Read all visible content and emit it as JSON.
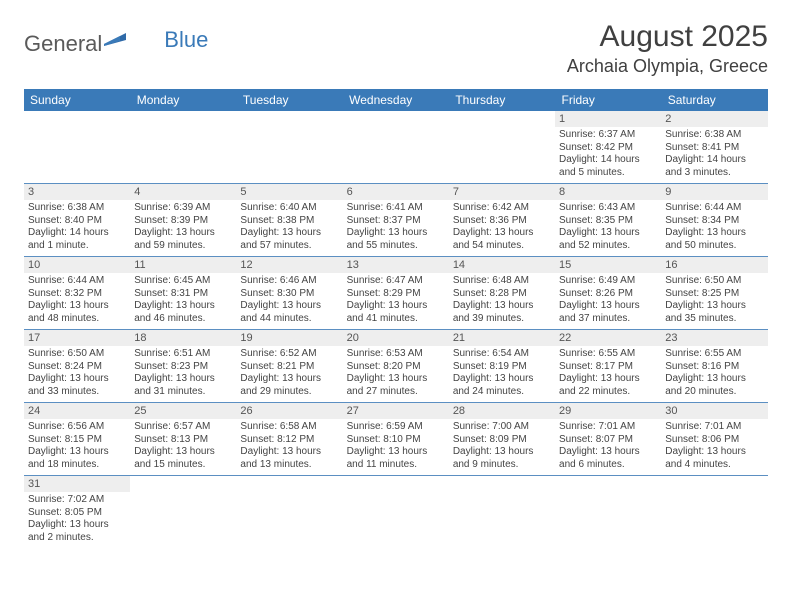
{
  "logo": {
    "part1": "General",
    "part2": "Blue"
  },
  "title": "August 2025",
  "location": "Archaia Olympia, Greece",
  "colors": {
    "header_bg": "#3a7ab8",
    "header_text": "#ffffff",
    "daynum_bg": "#eeeeee",
    "row_divider": "#5b8fc2",
    "text": "#444444",
    "title_text": "#404040"
  },
  "days_of_week": [
    "Sunday",
    "Monday",
    "Tuesday",
    "Wednesday",
    "Thursday",
    "Friday",
    "Saturday"
  ],
  "weeks": [
    [
      {
        "empty": true
      },
      {
        "empty": true
      },
      {
        "empty": true
      },
      {
        "empty": true
      },
      {
        "empty": true
      },
      {
        "num": "1",
        "sunrise": "Sunrise: 6:37 AM",
        "sunset": "Sunset: 8:42 PM",
        "daylight": "Daylight: 14 hours and 5 minutes."
      },
      {
        "num": "2",
        "sunrise": "Sunrise: 6:38 AM",
        "sunset": "Sunset: 8:41 PM",
        "daylight": "Daylight: 14 hours and 3 minutes."
      }
    ],
    [
      {
        "num": "3",
        "sunrise": "Sunrise: 6:38 AM",
        "sunset": "Sunset: 8:40 PM",
        "daylight": "Daylight: 14 hours and 1 minute."
      },
      {
        "num": "4",
        "sunrise": "Sunrise: 6:39 AM",
        "sunset": "Sunset: 8:39 PM",
        "daylight": "Daylight: 13 hours and 59 minutes."
      },
      {
        "num": "5",
        "sunrise": "Sunrise: 6:40 AM",
        "sunset": "Sunset: 8:38 PM",
        "daylight": "Daylight: 13 hours and 57 minutes."
      },
      {
        "num": "6",
        "sunrise": "Sunrise: 6:41 AM",
        "sunset": "Sunset: 8:37 PM",
        "daylight": "Daylight: 13 hours and 55 minutes."
      },
      {
        "num": "7",
        "sunrise": "Sunrise: 6:42 AM",
        "sunset": "Sunset: 8:36 PM",
        "daylight": "Daylight: 13 hours and 54 minutes."
      },
      {
        "num": "8",
        "sunrise": "Sunrise: 6:43 AM",
        "sunset": "Sunset: 8:35 PM",
        "daylight": "Daylight: 13 hours and 52 minutes."
      },
      {
        "num": "9",
        "sunrise": "Sunrise: 6:44 AM",
        "sunset": "Sunset: 8:34 PM",
        "daylight": "Daylight: 13 hours and 50 minutes."
      }
    ],
    [
      {
        "num": "10",
        "sunrise": "Sunrise: 6:44 AM",
        "sunset": "Sunset: 8:32 PM",
        "daylight": "Daylight: 13 hours and 48 minutes."
      },
      {
        "num": "11",
        "sunrise": "Sunrise: 6:45 AM",
        "sunset": "Sunset: 8:31 PM",
        "daylight": "Daylight: 13 hours and 46 minutes."
      },
      {
        "num": "12",
        "sunrise": "Sunrise: 6:46 AM",
        "sunset": "Sunset: 8:30 PM",
        "daylight": "Daylight: 13 hours and 44 minutes."
      },
      {
        "num": "13",
        "sunrise": "Sunrise: 6:47 AM",
        "sunset": "Sunset: 8:29 PM",
        "daylight": "Daylight: 13 hours and 41 minutes."
      },
      {
        "num": "14",
        "sunrise": "Sunrise: 6:48 AM",
        "sunset": "Sunset: 8:28 PM",
        "daylight": "Daylight: 13 hours and 39 minutes."
      },
      {
        "num": "15",
        "sunrise": "Sunrise: 6:49 AM",
        "sunset": "Sunset: 8:26 PM",
        "daylight": "Daylight: 13 hours and 37 minutes."
      },
      {
        "num": "16",
        "sunrise": "Sunrise: 6:50 AM",
        "sunset": "Sunset: 8:25 PM",
        "daylight": "Daylight: 13 hours and 35 minutes."
      }
    ],
    [
      {
        "num": "17",
        "sunrise": "Sunrise: 6:50 AM",
        "sunset": "Sunset: 8:24 PM",
        "daylight": "Daylight: 13 hours and 33 minutes."
      },
      {
        "num": "18",
        "sunrise": "Sunrise: 6:51 AM",
        "sunset": "Sunset: 8:23 PM",
        "daylight": "Daylight: 13 hours and 31 minutes."
      },
      {
        "num": "19",
        "sunrise": "Sunrise: 6:52 AM",
        "sunset": "Sunset: 8:21 PM",
        "daylight": "Daylight: 13 hours and 29 minutes."
      },
      {
        "num": "20",
        "sunrise": "Sunrise: 6:53 AM",
        "sunset": "Sunset: 8:20 PM",
        "daylight": "Daylight: 13 hours and 27 minutes."
      },
      {
        "num": "21",
        "sunrise": "Sunrise: 6:54 AM",
        "sunset": "Sunset: 8:19 PM",
        "daylight": "Daylight: 13 hours and 24 minutes."
      },
      {
        "num": "22",
        "sunrise": "Sunrise: 6:55 AM",
        "sunset": "Sunset: 8:17 PM",
        "daylight": "Daylight: 13 hours and 22 minutes."
      },
      {
        "num": "23",
        "sunrise": "Sunrise: 6:55 AM",
        "sunset": "Sunset: 8:16 PM",
        "daylight": "Daylight: 13 hours and 20 minutes."
      }
    ],
    [
      {
        "num": "24",
        "sunrise": "Sunrise: 6:56 AM",
        "sunset": "Sunset: 8:15 PM",
        "daylight": "Daylight: 13 hours and 18 minutes."
      },
      {
        "num": "25",
        "sunrise": "Sunrise: 6:57 AM",
        "sunset": "Sunset: 8:13 PM",
        "daylight": "Daylight: 13 hours and 15 minutes."
      },
      {
        "num": "26",
        "sunrise": "Sunrise: 6:58 AM",
        "sunset": "Sunset: 8:12 PM",
        "daylight": "Daylight: 13 hours and 13 minutes."
      },
      {
        "num": "27",
        "sunrise": "Sunrise: 6:59 AM",
        "sunset": "Sunset: 8:10 PM",
        "daylight": "Daylight: 13 hours and 11 minutes."
      },
      {
        "num": "28",
        "sunrise": "Sunrise: 7:00 AM",
        "sunset": "Sunset: 8:09 PM",
        "daylight": "Daylight: 13 hours and 9 minutes."
      },
      {
        "num": "29",
        "sunrise": "Sunrise: 7:01 AM",
        "sunset": "Sunset: 8:07 PM",
        "daylight": "Daylight: 13 hours and 6 minutes."
      },
      {
        "num": "30",
        "sunrise": "Sunrise: 7:01 AM",
        "sunset": "Sunset: 8:06 PM",
        "daylight": "Daylight: 13 hours and 4 minutes."
      }
    ],
    [
      {
        "num": "31",
        "sunrise": "Sunrise: 7:02 AM",
        "sunset": "Sunset: 8:05 PM",
        "daylight": "Daylight: 13 hours and 2 minutes."
      },
      {
        "empty": true
      },
      {
        "empty": true
      },
      {
        "empty": true
      },
      {
        "empty": true
      },
      {
        "empty": true
      },
      {
        "empty": true
      }
    ]
  ]
}
